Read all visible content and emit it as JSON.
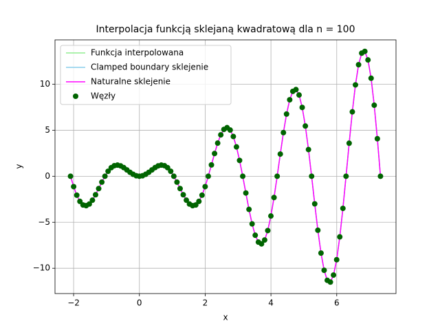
{
  "chart_data": {
    "type": "line",
    "title": "Interpolacja funkcją sklejaną kwadratową dla n = 100",
    "xlabel": "x",
    "ylabel": "y",
    "xlim": [
      -2.566,
      7.802
    ],
    "ylim": [
      -12.75,
      14.82
    ],
    "xticks": [
      {
        "value": -2,
        "label": "−2"
      },
      0,
      2,
      4,
      6
    ],
    "yticks": [
      {
        "value": -10,
        "label": "−10"
      },
      {
        "value": -5,
        "label": "−5"
      },
      0,
      5,
      10
    ],
    "grid": true,
    "legend": "upper left",
    "x": [
      -2.094,
      -1.999,
      -1.904,
      -1.809,
      -1.714,
      -1.618,
      -1.523,
      -1.428,
      -1.333,
      -1.238,
      -1.142,
      -1.047,
      -0.952,
      -0.857,
      -0.762,
      -0.666,
      -0.571,
      -0.476,
      -0.381,
      -0.286,
      -0.19,
      -0.095,
      0,
      0.095,
      0.19,
      0.286,
      0.381,
      0.476,
      0.571,
      0.666,
      0.762,
      0.857,
      0.952,
      1.047,
      1.142,
      1.238,
      1.333,
      1.428,
      1.523,
      1.618,
      1.714,
      1.809,
      1.904,
      1.999,
      2.094,
      2.19,
      2.285,
      2.38,
      2.475,
      2.57,
      2.666,
      2.761,
      2.856,
      2.951,
      3.046,
      3.142,
      3.237,
      3.332,
      3.427,
      3.522,
      3.618,
      3.713,
      3.808,
      3.903,
      3.998,
      4.094,
      4.189,
      4.284,
      4.379,
      4.474,
      4.57,
      4.665,
      4.76,
      4.855,
      4.95,
      5.046,
      5.141,
      5.236,
      5.331,
      5.426,
      5.522,
      5.617,
      5.712,
      5.807,
      5.902,
      5.998,
      6.093,
      6.188,
      6.283,
      6.378,
      6.474,
      6.569,
      6.664,
      6.759,
      6.854,
      6.95,
      7.045,
      7.14,
      7.235,
      7.33
    ],
    "series": [
      {
        "name": "Funkcja interpolowana",
        "color": "#90ee90",
        "type": "line",
        "values": [
          0,
          -1.13,
          -2.06,
          -2.73,
          -3.12,
          -3.2,
          -3.02,
          -2.6,
          -2.01,
          -1.34,
          -0.64,
          0,
          0.54,
          0.93,
          1.15,
          1.21,
          1.13,
          0.94,
          0.69,
          0.43,
          0.21,
          0.05,
          0,
          0.05,
          0.21,
          0.43,
          0.69,
          0.94,
          1.13,
          1.21,
          1.15,
          0.93,
          0.54,
          0,
          -0.64,
          -1.34,
          -2.01,
          -2.6,
          -3.02,
          -3.2,
          -3.12,
          -2.73,
          -2.06,
          -1.13,
          0,
          1.23,
          2.47,
          3.6,
          4.5,
          5.09,
          5.28,
          5.02,
          4.32,
          3.19,
          1.72,
          0,
          -1.82,
          -3.6,
          -5.18,
          -6.41,
          -7.16,
          -7.35,
          -6.93,
          -5.9,
          -4.32,
          -2.31,
          0,
          2.41,
          4.74,
          6.76,
          8.31,
          9.23,
          9.42,
          8.83,
          7.48,
          5.46,
          2.9,
          0,
          -3,
          -5.87,
          -8.35,
          -10.22,
          -11.31,
          -11.5,
          -10.74,
          -9.07,
          -6.59,
          -3.49,
          0,
          3.59,
          7,
          9.93,
          12.12,
          13.38,
          13.57,
          12.64,
          10.65,
          7.72,
          4.08,
          0
        ]
      },
      {
        "name": "Clamped boundary sklejenie",
        "color": "#87ceeb",
        "type": "line",
        "values": [
          0,
          -1.13,
          -2.06,
          -2.73,
          -3.12,
          -3.2,
          -3.02,
          -2.6,
          -2.01,
          -1.34,
          -0.64,
          0,
          0.54,
          0.93,
          1.15,
          1.21,
          1.13,
          0.94,
          0.69,
          0.43,
          0.21,
          0.05,
          0,
          0.05,
          0.21,
          0.43,
          0.69,
          0.94,
          1.13,
          1.21,
          1.15,
          0.93,
          0.54,
          0,
          -0.64,
          -1.34,
          -2.01,
          -2.6,
          -3.02,
          -3.2,
          -3.12,
          -2.73,
          -2.06,
          -1.13,
          0,
          1.23,
          2.47,
          3.6,
          4.5,
          5.09,
          5.28,
          5.02,
          4.32,
          3.19,
          1.72,
          0,
          -1.82,
          -3.6,
          -5.18,
          -6.41,
          -7.16,
          -7.35,
          -6.93,
          -5.9,
          -4.32,
          -2.31,
          0,
          2.41,
          4.74,
          6.76,
          8.31,
          9.23,
          9.42,
          8.83,
          7.48,
          5.46,
          2.9,
          0,
          -3,
          -5.87,
          -8.35,
          -10.22,
          -11.31,
          -11.5,
          -10.74,
          -9.07,
          -6.59,
          -3.49,
          0,
          3.59,
          7,
          9.93,
          12.12,
          13.38,
          13.57,
          12.64,
          10.65,
          7.72,
          4.08,
          0
        ]
      },
      {
        "name": "Naturalne sklejenie",
        "color": "#ff00ff",
        "type": "line",
        "values": [
          0,
          -1.13,
          -2.06,
          -2.73,
          -3.12,
          -3.2,
          -3.02,
          -2.6,
          -2.01,
          -1.34,
          -0.64,
          0,
          0.54,
          0.93,
          1.15,
          1.21,
          1.13,
          0.94,
          0.69,
          0.43,
          0.21,
          0.05,
          0,
          0.05,
          0.21,
          0.43,
          0.69,
          0.94,
          1.13,
          1.21,
          1.15,
          0.93,
          0.54,
          0,
          -0.64,
          -1.34,
          -2.01,
          -2.6,
          -3.02,
          -3.2,
          -3.12,
          -2.73,
          -2.06,
          -1.13,
          0,
          1.23,
          2.47,
          3.6,
          4.5,
          5.09,
          5.28,
          5.02,
          4.32,
          3.19,
          1.72,
          0,
          -1.82,
          -3.6,
          -5.18,
          -6.41,
          -7.16,
          -7.35,
          -6.93,
          -5.9,
          -4.32,
          -2.31,
          0,
          2.41,
          4.74,
          6.76,
          8.31,
          9.23,
          9.42,
          8.83,
          7.48,
          5.46,
          2.9,
          0,
          -3,
          -5.87,
          -8.35,
          -10.22,
          -11.31,
          -11.5,
          -10.74,
          -9.07,
          -6.59,
          -3.49,
          0,
          3.59,
          7,
          9.93,
          12.12,
          13.38,
          13.57,
          12.64,
          10.65,
          7.72,
          4.08,
          0
        ]
      },
      {
        "name": "Węzły",
        "color": "#006400",
        "type": "scatter",
        "values": [
          0,
          -1.13,
          -2.06,
          -2.73,
          -3.12,
          -3.2,
          -3.02,
          -2.6,
          -2.01,
          -1.34,
          -0.64,
          0,
          0.54,
          0.93,
          1.15,
          1.21,
          1.13,
          0.94,
          0.69,
          0.43,
          0.21,
          0.05,
          0,
          0.05,
          0.21,
          0.43,
          0.69,
          0.94,
          1.13,
          1.21,
          1.15,
          0.93,
          0.54,
          0,
          -0.64,
          -1.34,
          -2.01,
          -2.6,
          -3.02,
          -3.2,
          -3.12,
          -2.73,
          -2.06,
          -1.13,
          0,
          1.23,
          2.47,
          3.6,
          4.5,
          5.09,
          5.28,
          5.02,
          4.32,
          3.19,
          1.72,
          0,
          -1.82,
          -3.6,
          -5.18,
          -6.41,
          -7.16,
          -7.35,
          -6.93,
          -5.9,
          -4.32,
          -2.31,
          0,
          2.41,
          4.74,
          6.76,
          8.31,
          9.23,
          9.42,
          8.83,
          7.48,
          5.46,
          2.9,
          0,
          -3,
          -5.87,
          -8.35,
          -10.22,
          -11.31,
          -11.5,
          -10.74,
          -9.07,
          -6.59,
          -3.49,
          0,
          3.59,
          7,
          9.93,
          12.12,
          13.38,
          13.57,
          12.64,
          10.65,
          7.72,
          4.08,
          0
        ]
      }
    ]
  }
}
